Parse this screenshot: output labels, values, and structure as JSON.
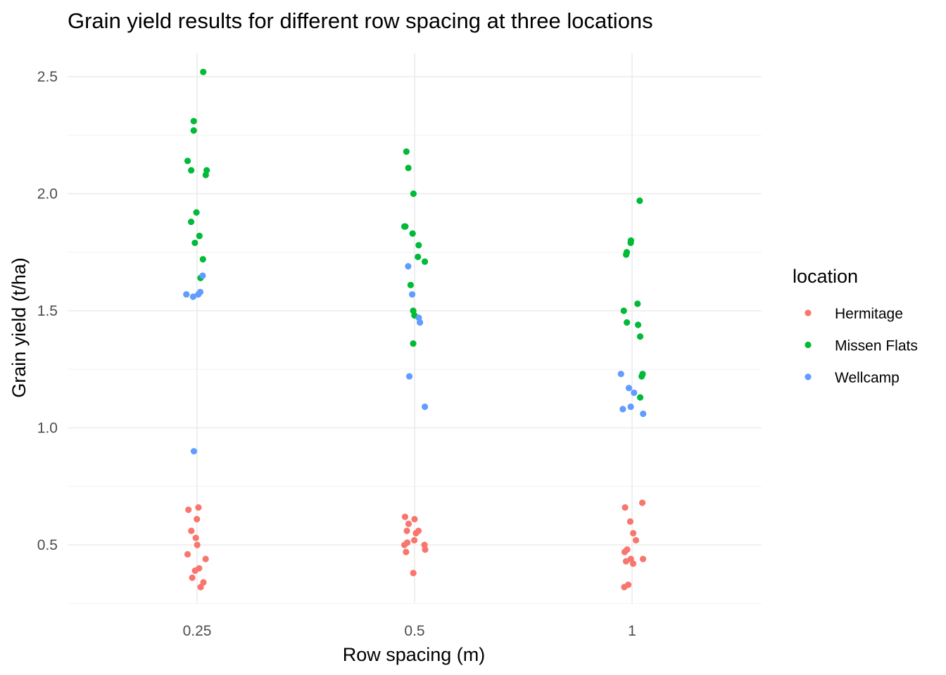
{
  "chart_data": {
    "type": "scatter",
    "title": "Grain yield results for different row spacing at three locations",
    "xlabel": "Row spacing (m)",
    "ylabel": "Grain yield (t/ha)",
    "x_categories": [
      "0.25",
      "0.5",
      "1"
    ],
    "y_ticks": [
      0.5,
      1.0,
      1.5,
      2.0,
      2.5
    ],
    "y_tick_labels": [
      "0.5",
      "1.0",
      "1.5",
      "2.0",
      "2.5"
    ],
    "ylim": [
      0.25,
      2.6
    ],
    "grid": true,
    "legend": {
      "title": "location",
      "position": "right"
    },
    "series": [
      {
        "name": "Hermitage",
        "color": "#F8766D",
        "points": [
          {
            "x": "0.25",
            "y": 0.61
          },
          {
            "x": "0.25",
            "y": 0.66
          },
          {
            "x": "0.25",
            "y": 0.65
          },
          {
            "x": "0.25",
            "y": 0.56
          },
          {
            "x": "0.25",
            "y": 0.53
          },
          {
            "x": "0.25",
            "y": 0.5
          },
          {
            "x": "0.25",
            "y": 0.46
          },
          {
            "x": "0.25",
            "y": 0.44
          },
          {
            "x": "0.25",
            "y": 0.4
          },
          {
            "x": "0.25",
            "y": 0.39
          },
          {
            "x": "0.25",
            "y": 0.36
          },
          {
            "x": "0.25",
            "y": 0.34
          },
          {
            "x": "0.25",
            "y": 0.32
          },
          {
            "x": "0.5",
            "y": 0.62
          },
          {
            "x": "0.5",
            "y": 0.61
          },
          {
            "x": "0.5",
            "y": 0.59
          },
          {
            "x": "0.5",
            "y": 0.56
          },
          {
            "x": "0.5",
            "y": 0.56
          },
          {
            "x": "0.5",
            "y": 0.55
          },
          {
            "x": "0.5",
            "y": 0.52
          },
          {
            "x": "0.5",
            "y": 0.51
          },
          {
            "x": "0.5",
            "y": 0.5
          },
          {
            "x": "0.5",
            "y": 0.5
          },
          {
            "x": "0.5",
            "y": 0.48
          },
          {
            "x": "0.5",
            "y": 0.47
          },
          {
            "x": "0.5",
            "y": 0.38
          },
          {
            "x": "1",
            "y": 0.68
          },
          {
            "x": "1",
            "y": 0.66
          },
          {
            "x": "1",
            "y": 0.6
          },
          {
            "x": "1",
            "y": 0.55
          },
          {
            "x": "1",
            "y": 0.52
          },
          {
            "x": "1",
            "y": 0.48
          },
          {
            "x": "1",
            "y": 0.47
          },
          {
            "x": "1",
            "y": 0.44
          },
          {
            "x": "1",
            "y": 0.44
          },
          {
            "x": "1",
            "y": 0.43
          },
          {
            "x": "1",
            "y": 0.42
          },
          {
            "x": "1",
            "y": 0.33
          },
          {
            "x": "1",
            "y": 0.32
          }
        ]
      },
      {
        "name": "Missen Flats",
        "color": "#00BA38",
        "points": [
          {
            "x": "0.25",
            "y": 2.52
          },
          {
            "x": "0.25",
            "y": 2.31
          },
          {
            "x": "0.25",
            "y": 2.27
          },
          {
            "x": "0.25",
            "y": 2.14
          },
          {
            "x": "0.25",
            "y": 2.1
          },
          {
            "x": "0.25",
            "y": 2.1
          },
          {
            "x": "0.25",
            "y": 2.08
          },
          {
            "x": "0.25",
            "y": 1.92
          },
          {
            "x": "0.25",
            "y": 1.88
          },
          {
            "x": "0.25",
            "y": 1.82
          },
          {
            "x": "0.25",
            "y": 1.79
          },
          {
            "x": "0.25",
            "y": 1.72
          },
          {
            "x": "0.25",
            "y": 1.64
          },
          {
            "x": "0.5",
            "y": 2.18
          },
          {
            "x": "0.5",
            "y": 2.11
          },
          {
            "x": "0.5",
            "y": 2.0
          },
          {
            "x": "0.5",
            "y": 1.86
          },
          {
            "x": "0.5",
            "y": 1.86
          },
          {
            "x": "0.5",
            "y": 1.83
          },
          {
            "x": "0.5",
            "y": 1.78
          },
          {
            "x": "0.5",
            "y": 1.73
          },
          {
            "x": "0.5",
            "y": 1.71
          },
          {
            "x": "0.5",
            "y": 1.61
          },
          {
            "x": "0.5",
            "y": 1.5
          },
          {
            "x": "0.5",
            "y": 1.48
          },
          {
            "x": "0.5",
            "y": 1.36
          },
          {
            "x": "1",
            "y": 1.97
          },
          {
            "x": "1",
            "y": 1.8
          },
          {
            "x": "1",
            "y": 1.79
          },
          {
            "x": "1",
            "y": 1.75
          },
          {
            "x": "1",
            "y": 1.74
          },
          {
            "x": "1",
            "y": 1.53
          },
          {
            "x": "1",
            "y": 1.5
          },
          {
            "x": "1",
            "y": 1.45
          },
          {
            "x": "1",
            "y": 1.44
          },
          {
            "x": "1",
            "y": 1.39
          },
          {
            "x": "1",
            "y": 1.23
          },
          {
            "x": "1",
            "y": 1.22
          },
          {
            "x": "1",
            "y": 1.13
          }
        ]
      },
      {
        "name": "Wellcamp",
        "color": "#619CFF",
        "points": [
          {
            "x": "0.25",
            "y": 1.65
          },
          {
            "x": "0.25",
            "y": 1.58
          },
          {
            "x": "0.25",
            "y": 1.57
          },
          {
            "x": "0.25",
            "y": 1.57
          },
          {
            "x": "0.25",
            "y": 1.56
          },
          {
            "x": "0.25",
            "y": 0.9
          },
          {
            "x": "0.5",
            "y": 1.69
          },
          {
            "x": "0.5",
            "y": 1.57
          },
          {
            "x": "0.5",
            "y": 1.47
          },
          {
            "x": "0.5",
            "y": 1.45
          },
          {
            "x": "0.5",
            "y": 1.22
          },
          {
            "x": "0.5",
            "y": 1.09
          },
          {
            "x": "1",
            "y": 1.23
          },
          {
            "x": "1",
            "y": 1.17
          },
          {
            "x": "1",
            "y": 1.15
          },
          {
            "x": "1",
            "y": 1.09
          },
          {
            "x": "1",
            "y": 1.08
          },
          {
            "x": "1",
            "y": 1.06
          }
        ]
      }
    ]
  }
}
